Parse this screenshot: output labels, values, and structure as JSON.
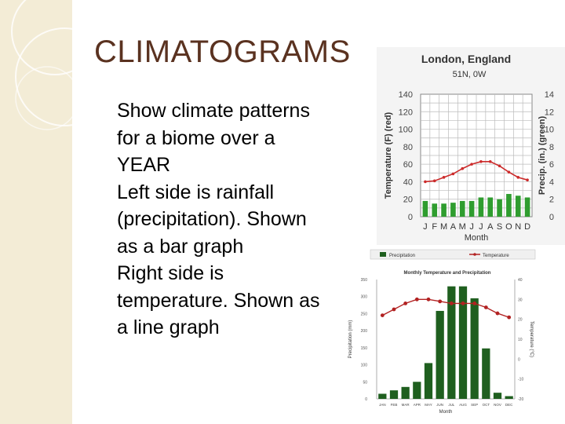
{
  "slide": {
    "title": "CLIMATOGRAMS",
    "bullet_marker": "",
    "bullets": [
      "Show climate patterns for a biome over a YEAR",
      "Left side is rainfall (precipitation). Shown as a bar graph",
      "Right side is temperature. Shown as a line graph"
    ]
  },
  "colors": {
    "title": "#5a3220",
    "sidebar": "#f3ecd6",
    "bar_green": "#2f9d2f",
    "temp_red": "#cc2b2b",
    "bar_dark_green": "#1f5f1f",
    "temp_dark_red": "#b22222"
  },
  "chart_data": [
    {
      "type": "bar",
      "title": "London, England",
      "subtitle": "51N, 0W",
      "xlabel": "Month",
      "ylabel_left": "Temperature (F) (red)",
      "ylabel_right": "Precip. (in.) (green)",
      "categories": [
        "J",
        "F",
        "M",
        "A",
        "M",
        "J",
        "J",
        "A",
        "S",
        "O",
        "N",
        "D"
      ],
      "left_ticks": [
        "0",
        "20",
        "40",
        "60",
        "80",
        "100",
        "120",
        "140"
      ],
      "right_ticks": [
        "0",
        "2",
        "4",
        "6",
        "8",
        "10",
        "12",
        "14"
      ],
      "ylim_left": [
        0,
        140
      ],
      "ylim_right": [
        0,
        14
      ],
      "grid": true,
      "series": [
        {
          "name": "Precip. (in.)",
          "axis": "right",
          "kind": "bar",
          "values": [
            1.8,
            1.5,
            1.5,
            1.6,
            1.8,
            1.8,
            2.2,
            2.2,
            2.0,
            2.6,
            2.4,
            2.2
          ]
        },
        {
          "name": "Temperature (F)",
          "axis": "left",
          "kind": "line",
          "values": [
            40,
            41,
            45,
            49,
            55,
            60,
            63,
            63,
            58,
            51,
            45,
            42
          ]
        }
      ]
    },
    {
      "type": "bar",
      "title": "Monthly Temperature and Precipitation",
      "xlabel": "Month",
      "ylabel_left": "Precipitation (mm)",
      "ylabel_right": "Temperature (°C)",
      "categories": [
        "JAN",
        "FEB",
        "MAR",
        "APR",
        "MAY",
        "JUN",
        "JUL",
        "AUG",
        "SEP",
        "OCT",
        "NOV",
        "DEC"
      ],
      "left_ticks": [
        "0",
        "50",
        "100",
        "150",
        "200",
        "250",
        "300",
        "350"
      ],
      "right_ticks": [
        "-20",
        "-10",
        "0",
        "10",
        "20",
        "30",
        "40"
      ],
      "ylim_left": [
        0,
        350
      ],
      "ylim_right": [
        -20,
        40
      ],
      "legend": [
        "Precipitation",
        "Temperature"
      ],
      "legend_position": "top",
      "grid": false,
      "series": [
        {
          "name": "Precipitation",
          "axis": "left",
          "kind": "bar",
          "values": [
            15,
            25,
            35,
            50,
            105,
            258,
            330,
            330,
            295,
            148,
            18,
            8
          ]
        },
        {
          "name": "Temperature",
          "axis": "right",
          "kind": "line",
          "values": [
            22,
            25,
            28,
            30,
            30,
            29,
            28,
            28,
            28,
            26,
            23,
            21
          ]
        }
      ]
    }
  ]
}
